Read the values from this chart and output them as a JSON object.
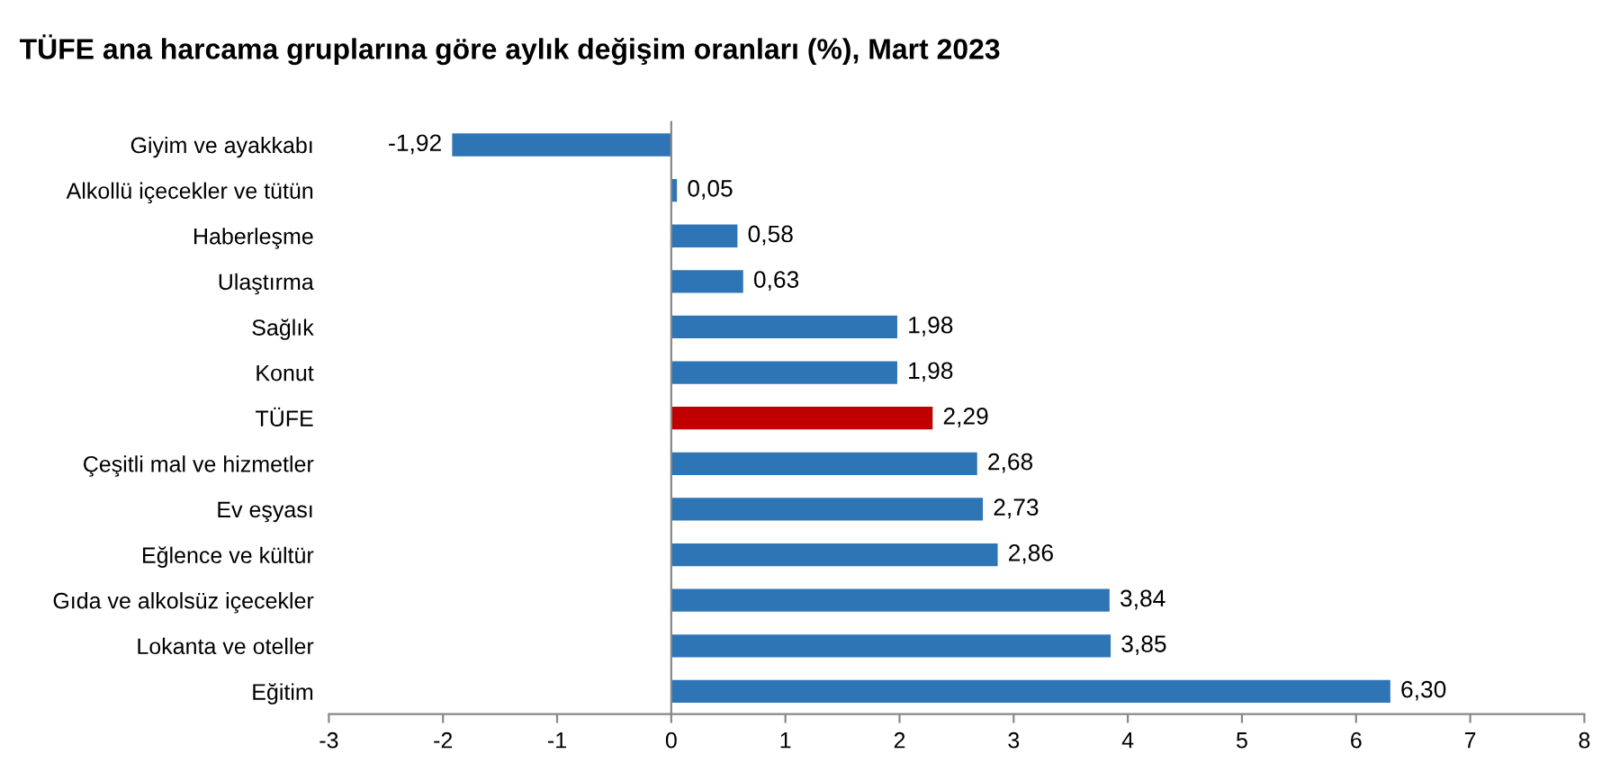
{
  "chart_data": {
    "type": "bar",
    "orientation": "horizontal",
    "title": "TÜFE ana harcama gruplarına göre aylık değişim oranları (%), Mart 2023",
    "categories": [
      "Giyim ve ayakkabı",
      "Alkollü içecekler ve tütün",
      "Haberleşme",
      "Ulaştırma",
      "Sağlık",
      "Konut",
      "TÜFE",
      "Çeşitli mal ve hizmetler",
      "Ev eşyası",
      "Eğlence ve kültür",
      "Gıda ve alkolsüz içecekler",
      "Lokanta ve oteller",
      "Eğitim"
    ],
    "values": [
      -1.92,
      0.05,
      0.58,
      0.63,
      1.98,
      1.98,
      2.29,
      2.68,
      2.73,
      2.86,
      3.84,
      3.85,
      6.3
    ],
    "value_labels": [
      "-1,92",
      "0,05",
      "0,58",
      "0,63",
      "1,98",
      "1,98",
      "2,29",
      "2,68",
      "2,73",
      "2,86",
      "3,84",
      "3,85",
      "6,30"
    ],
    "colors": [
      "#2e75b6",
      "#2e75b6",
      "#2e75b6",
      "#2e75b6",
      "#2e75b6",
      "#2e75b6",
      "#c00000",
      "#2e75b6",
      "#2e75b6",
      "#2e75b6",
      "#2e75b6",
      "#2e75b6",
      "#2e75b6"
    ],
    "xlim": [
      -3,
      8
    ],
    "xticks": [
      -3,
      -2,
      -1,
      0,
      1,
      2,
      3,
      4,
      5,
      6,
      7,
      8
    ]
  }
}
